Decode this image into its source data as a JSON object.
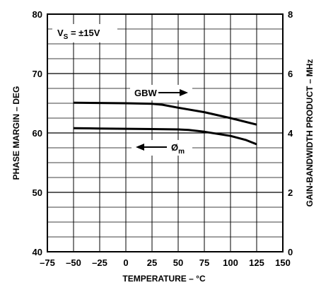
{
  "chart_data": {
    "type": "line",
    "title": "",
    "xlabel": "TEMPERATURE – °C",
    "ylabel": "PHASE MARGIN – DEG",
    "y2label": "GAIN-BANDWIDTH PRODUCT – MHz",
    "xlim": [
      -75,
      150
    ],
    "ylim": [
      40,
      80
    ],
    "y2lim": [
      0,
      8
    ],
    "x_ticks": [
      "–75",
      "–50",
      "–25",
      "0",
      "25",
      "50",
      "75",
      "100",
      "125",
      "150"
    ],
    "y_ticks": [
      "40",
      "50",
      "60",
      "70",
      "80"
    ],
    "y2_ticks": [
      "0",
      "2",
      "4",
      "6",
      "8"
    ],
    "grid": true,
    "condition": {
      "main": "V",
      "sub": "S",
      "rest": " = ±15V"
    },
    "series": [
      {
        "name": "GBW",
        "axis": "right",
        "x": [
          -50,
          -25,
          0,
          25,
          35,
          50,
          75,
          100,
          125
        ],
        "y": [
          5.02,
          5.01,
          5.0,
          4.98,
          4.95,
          4.85,
          4.7,
          4.5,
          4.28
        ]
      },
      {
        "name": "Øm",
        "axis": "left",
        "x": [
          -50,
          -25,
          0,
          25,
          50,
          60,
          75,
          100,
          115,
          125
        ],
        "y": [
          60.8,
          60.75,
          60.7,
          60.65,
          60.6,
          60.5,
          60.2,
          59.5,
          58.8,
          58.1
        ]
      }
    ],
    "annotations": {
      "gbw_label": "GBW",
      "phase_label": "Ø",
      "phase_sub": "m"
    }
  }
}
